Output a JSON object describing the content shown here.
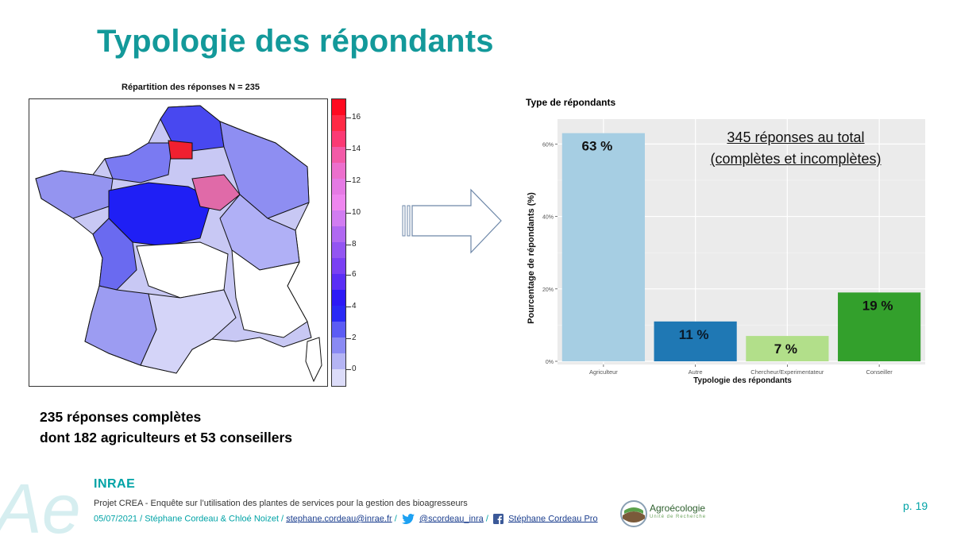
{
  "slide": {
    "title": "Typologie des répondants",
    "page_number": "p. 19"
  },
  "map": {
    "caption": "Répartition des réponses N = 235",
    "legend_ticks": [
      "16",
      "14",
      "12",
      "10",
      "8",
      "6",
      "4",
      "2",
      "0"
    ],
    "colors": {
      "high": "#ff0022",
      "mid": "#8a3ff0",
      "low": "#1a1aff",
      "zero": "#ffffff"
    }
  },
  "summary": {
    "line1": "235 réponses complètes",
    "line2": "dont 182 agriculteurs et 53 conseillers"
  },
  "chart_data": {
    "type": "bar",
    "title": "Type de répondants",
    "xlabel": "Typologie des répondants",
    "ylabel": "Pourcentage de répondants (%)",
    "categories": [
      "Agriculteur",
      "Autre",
      "Chercheur/Experimentateur",
      "Conseiller"
    ],
    "values": [
      63,
      11,
      7,
      19
    ],
    "value_labels": [
      "63 %",
      "11 %",
      "7 %",
      "19 %"
    ],
    "colors": [
      "#a6cee3",
      "#1f78b4",
      "#b2df8a",
      "#33a02c"
    ],
    "yticks": [
      "0%",
      "20%",
      "40%",
      "60%"
    ],
    "ylim": [
      0,
      66
    ],
    "grid": true,
    "annotation": {
      "line1": "345 réponses au total",
      "line2": "(complètes et incomplètes)"
    }
  },
  "footer": {
    "brand": "INRAE",
    "project_line": "Projet CREA - Enquête  sur l’utilisation des plantes de services pour la gestion des bioagresseurs",
    "date_authors": "05/07/2021 / Stéphane Cordeau  & Chloé Noizet /",
    "email": "stephane.cordeau@inrae.fr",
    "twitter": "@scordeau_inra",
    "facebook": "Stéphane Cordeau Pro",
    "partner_logo_text": "Agroécologie",
    "partner_logo_sub": "Unité de Recherche"
  }
}
